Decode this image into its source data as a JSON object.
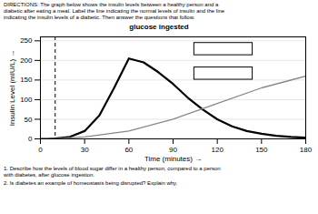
{
  "chart_data": {
    "type": "line",
    "title": "glucose ingested",
    "xlabel": "Time (minutes)",
    "ylabel": "Insulin Level (mIU/L)",
    "xlim": [
      0,
      180
    ],
    "ylim": [
      0,
      260
    ],
    "xticks": [
      0,
      30,
      60,
      90,
      120,
      150,
      180
    ],
    "yticks": [
      0,
      50,
      100,
      150,
      200,
      250
    ],
    "grid": "y",
    "series": [
      {
        "color": "#000000",
        "x": [
          0,
          5,
          10,
          20,
          30,
          40,
          50,
          60,
          70,
          80,
          90,
          100,
          110,
          120,
          130,
          140,
          150,
          160,
          170,
          180
        ],
        "values": [
          0,
          0,
          1,
          5,
          20,
          60,
          130,
          205,
          195,
          170,
          140,
          105,
          75,
          50,
          32,
          20,
          13,
          8,
          5,
          3
        ]
      },
      {
        "color": "#888888",
        "x": [
          0,
          10,
          30,
          60,
          90,
          120,
          150,
          180
        ],
        "values": [
          0,
          0,
          5,
          20,
          50,
          90,
          130,
          160
        ]
      }
    ],
    "vlines": [
      {
        "x": 10,
        "color": "#000000",
        "line_style": "dashed"
      }
    ],
    "annotations": [
      "DIRECTIONS: The graph below shows the insulin levels between a healthy person and a\ndiabetic after eating a meal. Label the line indicating the normal levels of insulin and the line\nindicating the insulin levels of a diabetic. Then answer the questions that follow.",
      "1. Describe how the levels of blood sugar differ in a healthy person, compared to a person\nwith diabetes, after glucose ingestion.",
      "2. Is diabetes an example of homeostasis being disrupted? Explain why."
    ]
  }
}
